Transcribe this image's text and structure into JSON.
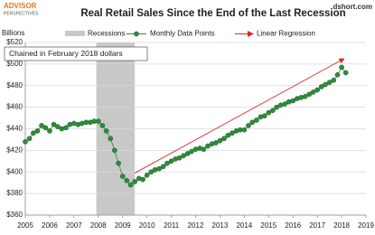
{
  "logo": {
    "name": "ADVISOR",
    "sub": "PERSPECTIVES"
  },
  "source": "dshort.com",
  "chart_data": {
    "type": "line",
    "title": "Real  Retail Sales Since the End of the Last Recession",
    "y_label": "Billions",
    "annotation": "Chained in February 2018 dollars",
    "recessions": {
      "name": "Recessions",
      "color": "#c8c8c8",
      "spans": [
        [
          2007.92,
          2009.5
        ]
      ]
    },
    "regression": {
      "name": "Linear Regression",
      "color": "#d62b2b",
      "x": [
        2009.5,
        2018.1
      ],
      "values": [
        399,
        505
      ]
    },
    "x": [
      2005.0,
      2005.17,
      2005.33,
      2005.5,
      2005.67,
      2005.83,
      2006.0,
      2006.17,
      2006.33,
      2006.5,
      2006.67,
      2006.83,
      2007.0,
      2007.17,
      2007.33,
      2007.5,
      2007.67,
      2007.83,
      2008.0,
      2008.17,
      2008.33,
      2008.5,
      2008.67,
      2008.83,
      2009.0,
      2009.17,
      2009.33,
      2009.5,
      2009.67,
      2009.83,
      2010.0,
      2010.17,
      2010.33,
      2010.5,
      2010.67,
      2010.83,
      2011.0,
      2011.17,
      2011.33,
      2011.5,
      2011.67,
      2011.83,
      2012.0,
      2012.17,
      2012.33,
      2012.5,
      2012.67,
      2012.83,
      2013.0,
      2013.17,
      2013.33,
      2013.5,
      2013.67,
      2013.83,
      2014.0,
      2014.17,
      2014.33,
      2014.5,
      2014.67,
      2014.83,
      2015.0,
      2015.17,
      2015.33,
      2015.5,
      2015.67,
      2015.83,
      2016.0,
      2016.17,
      2016.33,
      2016.5,
      2016.67,
      2016.83,
      2017.0,
      2017.17,
      2017.33,
      2017.5,
      2017.67,
      2017.83,
      2018.0,
      2018.17
    ],
    "series": [
      {
        "name": "Monthly Data Points",
        "color": "#2e8b3c",
        "values": [
          428,
          431,
          436,
          438,
          443,
          441,
          438,
          444,
          442,
          440,
          441,
          444,
          445,
          444,
          445,
          446,
          446,
          447,
          447,
          443,
          438,
          431,
          420,
          408,
          396,
          392,
          388,
          391,
          394,
          393,
          397,
          400,
          402,
          403,
          405,
          408,
          410,
          412,
          413,
          415,
          417,
          419,
          421,
          422,
          421,
          424,
          426,
          427,
          429,
          431,
          434,
          436,
          438,
          439,
          439,
          443,
          446,
          448,
          451,
          452,
          455,
          457,
          460,
          462,
          463,
          465,
          466,
          468,
          469,
          470,
          472,
          474,
          476,
          479,
          481,
          483,
          485,
          490,
          497,
          492
        ]
      }
    ],
    "xlim": [
      2005,
      2019
    ],
    "xticks": [
      2005,
      2006,
      2007,
      2008,
      2009,
      2010,
      2011,
      2012,
      2013,
      2014,
      2015,
      2016,
      2017,
      2018,
      2019
    ],
    "ylim": [
      360,
      520
    ],
    "yticks": [
      {
        "value": 360,
        "label": "$360"
      },
      {
        "value": 380,
        "label": "$380"
      },
      {
        "value": 400,
        "label": "$400"
      },
      {
        "value": 420,
        "label": "$420"
      },
      {
        "value": 440,
        "label": "$440"
      },
      {
        "value": 460,
        "label": "$460"
      },
      {
        "value": 480,
        "label": "$480"
      },
      {
        "value": 500,
        "label": "$500"
      },
      {
        "value": 520,
        "label": "$520"
      }
    ],
    "grid": true
  }
}
